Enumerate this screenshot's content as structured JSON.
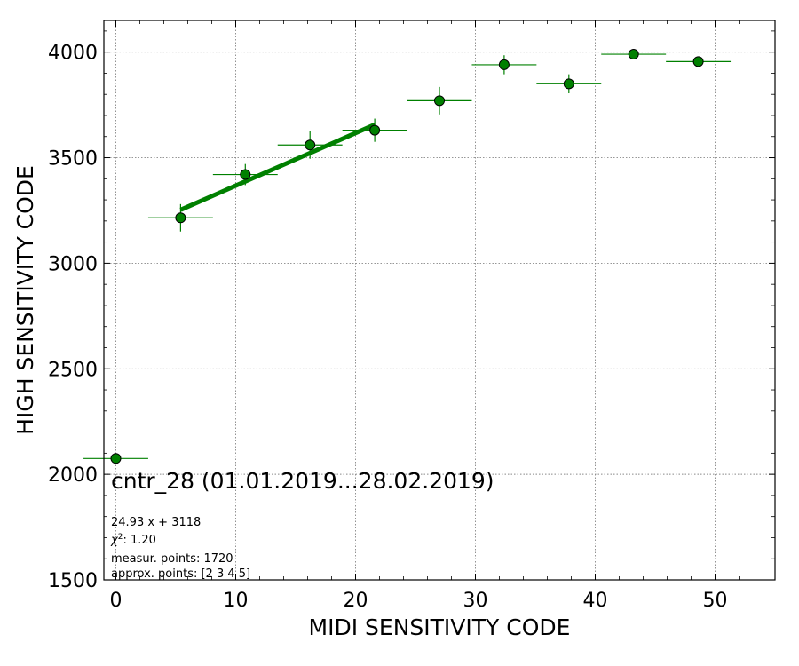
{
  "chart_data": {
    "type": "scatter",
    "title": "cntr_28 (01.01.2019...28.02.2019)",
    "xlabel": "MIDI SENSITIVITY CODE",
    "ylabel": "HIGH SENSITIVITY CODE",
    "xlim": [
      -1,
      55
    ],
    "ylim": [
      1500,
      4150
    ],
    "xticks": [
      0,
      10,
      20,
      30,
      40,
      50
    ],
    "yticks": [
      1500,
      2000,
      2500,
      3000,
      3500,
      4000
    ],
    "grid": true,
    "colors": {
      "points": "#008000",
      "edge": "#000000",
      "fit": "#008000"
    },
    "series": [
      {
        "points": [
          {
            "x": 0.0,
            "y": 2075,
            "xerr": 2.7,
            "yerr": 0
          },
          {
            "x": 5.4,
            "y": 3215,
            "xerr": 2.7,
            "yerr": 65
          },
          {
            "x": 10.8,
            "y": 3420,
            "xerr": 2.7,
            "yerr": 50
          },
          {
            "x": 16.2,
            "y": 3560,
            "xerr": 2.7,
            "yerr": 65
          },
          {
            "x": 21.6,
            "y": 3630,
            "xerr": 2.7,
            "yerr": 55
          },
          {
            "x": 27.0,
            "y": 3770,
            "xerr": 2.7,
            "yerr": 65
          },
          {
            "x": 32.4,
            "y": 3940,
            "xerr": 2.7,
            "yerr": 45
          },
          {
            "x": 37.8,
            "y": 3850,
            "xerr": 2.7,
            "yerr": 45
          },
          {
            "x": 43.2,
            "y": 3990,
            "xerr": 2.7,
            "yerr": 20
          },
          {
            "x": 48.6,
            "y": 3955,
            "xerr": 2.7,
            "yerr": 20
          }
        ]
      }
    ],
    "fit": {
      "slope": 24.93,
      "intercept": 3118,
      "x_range": [
        5.4,
        21.6
      ]
    },
    "annotations": {
      "equation": "24.93 x + 3118",
      "chi2_symbol": "χ",
      "chi2_sup": "2",
      "chi2_value": ": 1.20",
      "measured": "measur. points: 1720",
      "approx": "approx. points: [2 3 4 5]"
    }
  }
}
